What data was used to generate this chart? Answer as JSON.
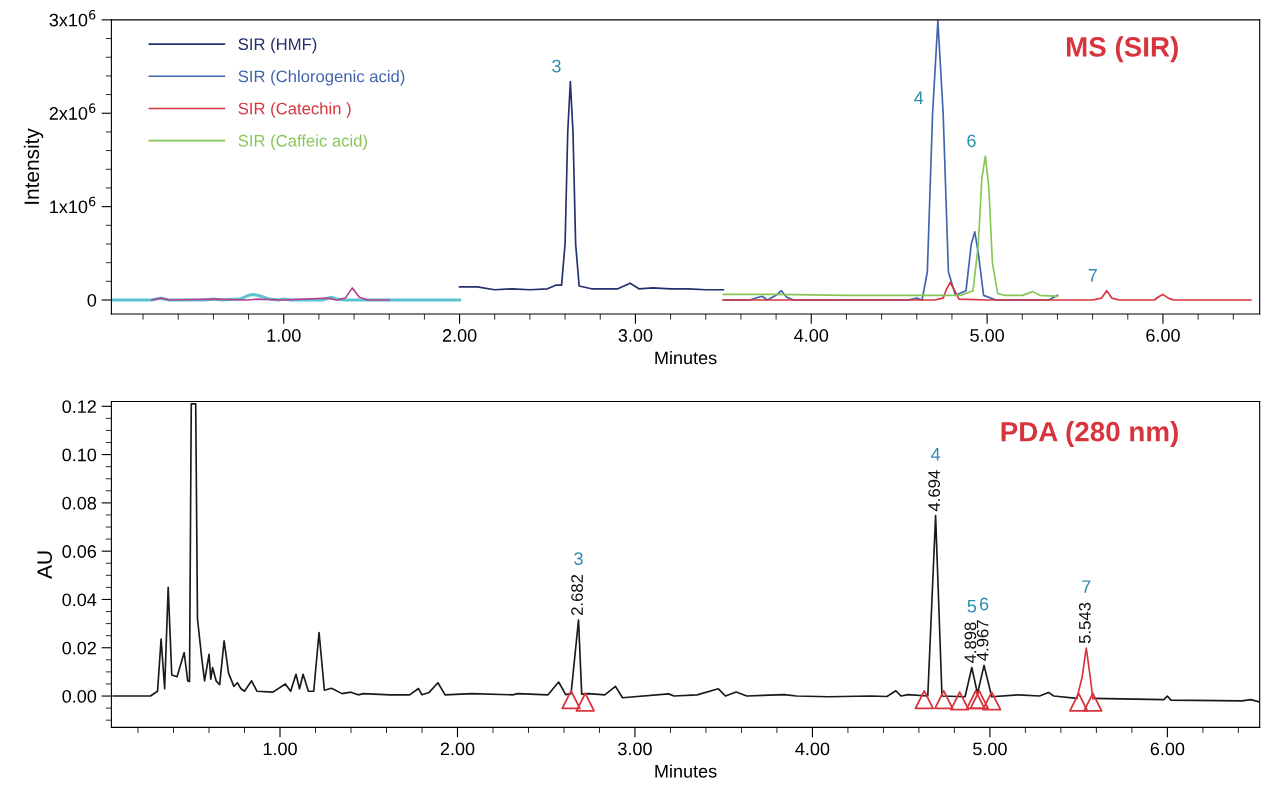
{
  "chart_data": [
    {
      "type": "line",
      "xlabel": "Minutes",
      "ylabel": "Intensity",
      "legend": "top left",
      "xlim": [
        0.02,
        6.55
      ],
      "ylim": [
        -150000,
        3000000
      ],
      "xticks": [
        {
          "value": 0.2,
          "label": null
        },
        {
          "value": 0.4,
          "label": null
        },
        {
          "value": 0.6,
          "label": null
        },
        {
          "value": 0.8,
          "label": null
        },
        {
          "value": 1,
          "label": "1.00"
        },
        {
          "value": 1.2,
          "label": null
        },
        {
          "value": 1.4,
          "label": null
        },
        {
          "value": 1.6,
          "label": null
        },
        {
          "value": 1.8,
          "label": null
        },
        {
          "value": 2,
          "label": "2.00"
        },
        {
          "value": 2.2,
          "label": null
        },
        {
          "value": 2.4,
          "label": null
        },
        {
          "value": 2.6,
          "label": null
        },
        {
          "value": 2.8,
          "label": null
        },
        {
          "value": 3,
          "label": "3.00"
        },
        {
          "value": 3.2,
          "label": null
        },
        {
          "value": 3.4,
          "label": null
        },
        {
          "value": 3.6,
          "label": null
        },
        {
          "value": 3.8,
          "label": null
        },
        {
          "value": 4,
          "label": "4.00"
        },
        {
          "value": 4.2,
          "label": null
        },
        {
          "value": 4.4,
          "label": null
        },
        {
          "value": 4.6,
          "label": null
        },
        {
          "value": 4.8,
          "label": null
        },
        {
          "value": 5,
          "label": "5.00"
        },
        {
          "value": 5.2,
          "label": null
        },
        {
          "value": 5.4,
          "label": null
        },
        {
          "value": 5.6,
          "label": null
        },
        {
          "value": 5.8,
          "label": null
        },
        {
          "value": 6,
          "label": "6.00"
        },
        {
          "value": 6.2,
          "label": null
        },
        {
          "value": 6.4,
          "label": null
        }
      ],
      "yticks": [
        {
          "value": 0,
          "label": "0"
        },
        {
          "value": 200000,
          "label": null
        },
        {
          "value": 400000,
          "label": null
        },
        {
          "value": 600000,
          "label": null
        },
        {
          "value": 800000,
          "label": null
        },
        {
          "value": 1000000,
          "label": "1x10$^{6}$"
        },
        {
          "value": 1200000,
          "label": null
        },
        {
          "value": 1400000,
          "label": null
        },
        {
          "value": 1600000,
          "label": null
        },
        {
          "value": 1800000,
          "label": null
        },
        {
          "value": 2000000,
          "label": "2x10$^{6}$"
        },
        {
          "value": 2200000,
          "label": null
        },
        {
          "value": 2400000,
          "label": null
        },
        {
          "value": 2600000,
          "label": null
        },
        {
          "value": 2800000,
          "label": null
        },
        {
          "value": 3000000,
          "label": "3x10$^{6}$"
        }
      ],
      "series": [
        {
          "color": "#5cc3d3",
          "x": [
            0.02,
            0.25,
            0.3,
            0.35,
            0.55,
            0.6,
            0.65,
            0.75,
            0.8,
            0.83,
            0.87,
            0.92,
            0.97,
            1.0,
            1.04,
            1.22,
            1.27,
            1.3,
            1.35,
            2.0
          ],
          "values": [
            0,
            0,
            20000,
            0,
            0,
            10000,
            0,
            10000,
            50000,
            60000,
            40000,
            10000,
            0,
            10000,
            0,
            0,
            30000,
            10000,
            0,
            0
          ]
        },
        {
          "color": "#b5428f",
          "x": [
            0.25,
            0.3,
            0.35,
            0.6,
            0.8,
            0.85,
            1.0,
            1.25,
            1.3,
            1.35,
            1.39,
            1.43,
            1.48,
            1.6
          ],
          "values": [
            0,
            20000,
            0,
            10000,
            0,
            10000,
            0,
            20000,
            0,
            20000,
            130000,
            30000,
            0,
            0
          ]
        },
        {
          "name": "SIR (HMF)",
          "color": "#22306b",
          "x": [
            2.0,
            2.1,
            2.2,
            2.3,
            2.4,
            2.5,
            2.55,
            2.58,
            2.6,
            2.615,
            2.63,
            2.645,
            2.66,
            2.68,
            2.75,
            2.9,
            2.97,
            3.02,
            3.1,
            3.2,
            3.3,
            3.4,
            3.5
          ],
          "values": [
            140000,
            140000,
            110000,
            120000,
            110000,
            120000,
            160000,
            160000,
            600000,
            1800000,
            2340000,
            1800000,
            600000,
            150000,
            120000,
            120000,
            180000,
            120000,
            130000,
            120000,
            120000,
            110000,
            110000
          ]
        },
        {
          "name": "SIR (Chlorogenic acid)",
          "color": "#3f64ad",
          "x": [
            3.5,
            3.65,
            3.7,
            3.72,
            3.75,
            3.8,
            3.83,
            3.86,
            3.9,
            4.2,
            4.55,
            4.6,
            4.63,
            4.66,
            4.69,
            4.72,
            4.75,
            4.78,
            4.82,
            4.88,
            4.91,
            4.93,
            4.95,
            4.98,
            5.05,
            5.2,
            5.35,
            5.4
          ],
          "values": [
            0,
            0,
            30000,
            40000,
            0,
            50000,
            100000,
            30000,
            0,
            0,
            0,
            20000,
            0,
            300000,
            2000000,
            2990000,
            2000000,
            300000,
            50000,
            100000,
            600000,
            730000,
            500000,
            50000,
            0,
            0,
            0,
            50000
          ]
        },
        {
          "name": "SIR (Catechin )",
          "color": "#d8343e",
          "x": [
            3.5,
            4.7,
            4.75,
            4.77,
            4.79,
            4.81,
            4.84,
            5.0,
            5.6,
            5.65,
            5.68,
            5.71,
            5.75,
            5.95,
            5.98,
            6.0,
            6.03,
            6.06,
            6.5
          ],
          "values": [
            0,
            0,
            20000,
            120000,
            190000,
            120000,
            10000,
            0,
            0,
            20000,
            100000,
            20000,
            0,
            0,
            40000,
            60000,
            20000,
            0,
            0
          ]
        },
        {
          "name": "SIR (Caffeic acid)",
          "color": "#86c655",
          "x": [
            3.5,
            3.8,
            4.2,
            4.6,
            4.85,
            4.92,
            4.95,
            4.97,
            4.99,
            5.01,
            5.03,
            5.06,
            5.1,
            5.2,
            5.26,
            5.3,
            5.4
          ],
          "values": [
            60000,
            60000,
            50000,
            50000,
            50000,
            100000,
            600000,
            1300000,
            1540000,
            1200000,
            400000,
            70000,
            50000,
            50000,
            90000,
            50000,
            40000
          ]
        }
      ],
      "annotations": [
        "MS (SIR)",
        {
          "text": "3",
          "x": 2.63,
          "y": 2340000
        },
        {
          "text": "4",
          "x": 4.69,
          "y": 2000000
        },
        {
          "text": "6",
          "x": 4.99,
          "y": 1540000
        },
        {
          "text": "7",
          "x": 5.68,
          "y": 100000
        }
      ]
    },
    {
      "type": "line",
      "xlabel": "Minutes",
      "ylabel": "AU",
      "xlim": [
        0.05,
        6.52
      ],
      "ylim": [
        -0.013,
        0.122
      ],
      "xticks": [
        {
          "value": 0.2,
          "label": null
        },
        {
          "value": 0.4,
          "label": null
        },
        {
          "value": 0.6,
          "label": null
        },
        {
          "value": 0.8,
          "label": null
        },
        {
          "value": 1,
          "label": "1.00"
        },
        {
          "value": 1.2,
          "label": null
        },
        {
          "value": 1.4,
          "label": null
        },
        {
          "value": 1.6,
          "label": null
        },
        {
          "value": 1.8,
          "label": null
        },
        {
          "value": 2,
          "label": "2.00"
        },
        {
          "value": 2.2,
          "label": null
        },
        {
          "value": 2.4,
          "label": null
        },
        {
          "value": 2.6,
          "label": null
        },
        {
          "value": 2.8,
          "label": null
        },
        {
          "value": 3,
          "label": "3.00"
        },
        {
          "value": 3.2,
          "label": null
        },
        {
          "value": 3.4,
          "label": null
        },
        {
          "value": 3.6,
          "label": null
        },
        {
          "value": 3.8,
          "label": null
        },
        {
          "value": 4,
          "label": "4.00"
        },
        {
          "value": 4.2,
          "label": null
        },
        {
          "value": 4.4,
          "label": null
        },
        {
          "value": 4.6,
          "label": null
        },
        {
          "value": 4.8,
          "label": null
        },
        {
          "value": 5,
          "label": "5.00"
        },
        {
          "value": 5.2,
          "label": null
        },
        {
          "value": 5.4,
          "label": null
        },
        {
          "value": 5.6,
          "label": null
        },
        {
          "value": 5.8,
          "label": null
        },
        {
          "value": 6,
          "label": "6.00"
        },
        {
          "value": 6.2,
          "label": null
        },
        {
          "value": 6.4,
          "label": null
        }
      ],
      "yticks": [
        {
          "value": -0.01,
          "label": null
        },
        {
          "value": -0.005,
          "label": null
        },
        {
          "value": 0,
          "label": "0.00"
        },
        {
          "value": 0.005,
          "label": null
        },
        {
          "value": 0.01,
          "label": null
        },
        {
          "value": 0.015,
          "label": null
        },
        {
          "value": 0.02,
          "label": "0.02"
        },
        {
          "value": 0.025,
          "label": null
        },
        {
          "value": 0.03,
          "label": null
        },
        {
          "value": 0.035,
          "label": null
        },
        {
          "value": 0.04,
          "label": "0.04"
        },
        {
          "value": 0.045,
          "label": null
        },
        {
          "value": 0.05,
          "label": null
        },
        {
          "value": 0.055,
          "label": null
        },
        {
          "value": 0.06,
          "label": "0.06"
        },
        {
          "value": 0.065,
          "label": null
        },
        {
          "value": 0.07,
          "label": null
        },
        {
          "value": 0.075,
          "label": null
        },
        {
          "value": 0.08,
          "label": "0.08"
        },
        {
          "value": 0.085,
          "label": null
        },
        {
          "value": 0.09,
          "label": null
        },
        {
          "value": 0.095,
          "label": null
        },
        {
          "value": 0.1,
          "label": "0.10"
        },
        {
          "value": 0.105,
          "label": null
        },
        {
          "value": 0.11,
          "label": null
        },
        {
          "value": 0.115,
          "label": null
        },
        {
          "value": 0.12,
          "label": "0.12"
        }
      ],
      "series": [
        {
          "color": "#1a1a1a",
          "x": [
            0.06,
            0.27,
            0.31,
            0.33,
            0.35,
            0.37,
            0.39,
            0.42,
            0.46,
            0.48,
            0.49,
            0.5,
            0.525,
            0.535,
            0.56,
            0.575,
            0.6,
            0.61,
            0.62,
            0.64,
            0.66,
            0.685,
            0.71,
            0.74,
            0.76,
            0.78,
            0.8,
            0.84,
            0.87,
            0.96,
            1.03,
            1.06,
            1.09,
            1.11,
            1.13,
            1.16,
            1.19,
            1.22,
            1.25,
            1.29,
            1.35,
            1.4,
            1.44,
            1.47,
            1.62,
            1.73,
            1.78,
            1.8,
            1.84,
            1.89,
            1.93,
            2.08,
            2.31,
            2.34,
            2.51,
            2.57,
            2.61,
            2.64,
            2.682,
            2.7,
            2.74,
            2.83,
            2.89,
            2.93,
            3.19,
            3.22,
            3.35,
            3.47,
            3.51,
            3.57,
            3.63,
            3.84,
            3.91,
            4.09,
            4.33,
            4.42,
            4.47,
            4.5,
            4.54,
            4.65,
            4.694,
            4.73,
            4.86,
            4.898,
            4.93,
            4.967,
            5.01,
            5.16,
            5.28,
            5.33,
            5.36,
            5.49,
            5.543,
            5.58,
            5.98,
            6.0,
            6.02,
            6.42,
            6.47,
            6.52
          ],
          "values": [
            0,
            0,
            0.002,
            0.0236,
            0.003,
            0.045,
            0.0087,
            0.008,
            0.018,
            0.0063,
            0.006,
            0.121,
            0.121,
            0.032,
            0.015,
            0.0063,
            0.0173,
            0.007,
            0.0118,
            0.0063,
            0.0047,
            0.0229,
            0.0095,
            0.004,
            0.0055,
            0.003,
            0.002,
            0.0063,
            0.002,
            0.0016,
            0.005,
            0.002,
            0.009,
            0.003,
            0.009,
            0.002,
            0.002,
            0.0263,
            0.0024,
            0.0032,
            0.001,
            0.0016,
            0.0005,
            0.001,
            0.0005,
            0.0005,
            0.0031,
            0.0005,
            0.0015,
            0.0055,
            0.0005,
            0.001,
            0.0005,
            0.001,
            0.0005,
            0.0058,
            0.0006,
            0.001,
            0.0315,
            0.0008,
            0.001,
            0.0005,
            0.004,
            -0.0007,
            0.0009,
            0,
            0.0005,
            0.003,
            0,
            0.0017,
            0,
            0.0006,
            0,
            -0.0003,
            0,
            -0.0002,
            0.0022,
            0,
            0.0006,
            0,
            0.0747,
            0,
            -0.0003,
            0.0118,
            0.001,
            0.0127,
            -0.0003,
            0.0005,
            0,
            0.0015,
            0,
            -0.001,
            null,
            -0.001,
            -0.0015,
            0,
            -0.0017,
            -0.002,
            -0.0015,
            -0.0025
          ]
        },
        {
          "color": "#d8343e",
          "x": [
            5.49,
            5.52,
            5.543,
            5.565,
            5.58
          ],
          "values": [
            -0.001,
            0.008,
            0.0199,
            0.008,
            -0.001
          ]
        },
        {
          "type": "scatter",
          "marker": "triangle",
          "color": "#d8343e",
          "x": [
            2.64,
            2.72,
            4.63,
            4.74,
            4.83,
            4.92,
            4.94,
            5.01,
            5.5,
            5.58
          ],
          "values": [
            -0.0015,
            -0.0025,
            -0.0015,
            -0.0015,
            -0.002,
            -0.0015,
            -0.0015,
            -0.002,
            -0.0025,
            -0.0025
          ]
        }
      ],
      "annotations": [
        "PDA (280 nm)",
        "3",
        "4",
        "5",
        "6",
        "7",
        {
          "text": "2.682",
          "x": 2.682,
          "y": 0.0315
        },
        {
          "text": "4.694",
          "x": 4.694,
          "y": 0.0747
        },
        {
          "text": "4.898",
          "x": 4.898,
          "y": 0.0118
        },
        {
          "text": "4.967",
          "x": 4.967,
          "y": 0.0127
        },
        {
          "text": "5.543",
          "x": 5.543,
          "y": 0.0199
        }
      ]
    }
  ]
}
